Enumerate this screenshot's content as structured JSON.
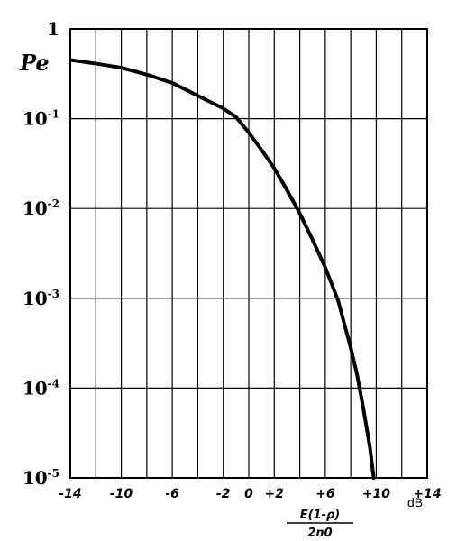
{
  "chart_data": {
    "type": "line",
    "ylabel": "Pe",
    "xlabel_numerator": "E(1-ρ)",
    "xlabel_denominator": "2n0",
    "x_unit": "dB",
    "xlim": [
      -14,
      14
    ],
    "ylim": [
      1e-05,
      1
    ],
    "y_scale": "log",
    "grid": true,
    "x_ticks": [
      "-14",
      "-10",
      "-6",
      "-2",
      "0",
      "+2",
      "+6",
      "+10",
      "+14"
    ],
    "x_tick_values": [
      -14,
      -10,
      -6,
      -2,
      0,
      2,
      6,
      10,
      14
    ],
    "x_grid_values": [
      -14,
      -12,
      -10,
      -8,
      -6,
      -4,
      -2,
      0,
      2,
      4,
      6,
      8,
      10,
      12,
      14
    ],
    "y_ticks": [
      {
        "base": "1",
        "exp": "",
        "value": 1
      },
      {
        "base": "10",
        "exp": "-1",
        "value": 0.1
      },
      {
        "base": "10",
        "exp": "-2",
        "value": 0.01
      },
      {
        "base": "10",
        "exp": "-3",
        "value": 0.001
      },
      {
        "base": "10",
        "exp": "-4",
        "value": 0.0001
      },
      {
        "base": "10",
        "exp": "-5",
        "value": 1e-05
      }
    ],
    "series": [
      {
        "x": [
          -14,
          -12,
          -10,
          -8,
          -6,
          -4,
          -2,
          -1,
          0,
          1,
          2,
          3,
          4,
          5,
          6,
          7,
          8,
          8.5,
          9,
          9.5,
          9.8
        ],
        "y": [
          0.45,
          0.41,
          0.37,
          0.31,
          0.25,
          0.18,
          0.13,
          0.104,
          0.07,
          0.045,
          0.028,
          0.016,
          0.0088,
          0.0045,
          0.0022,
          0.00095,
          0.00028,
          0.00014,
          5.8e-05,
          2.2e-05,
          1e-05
        ]
      }
    ]
  }
}
